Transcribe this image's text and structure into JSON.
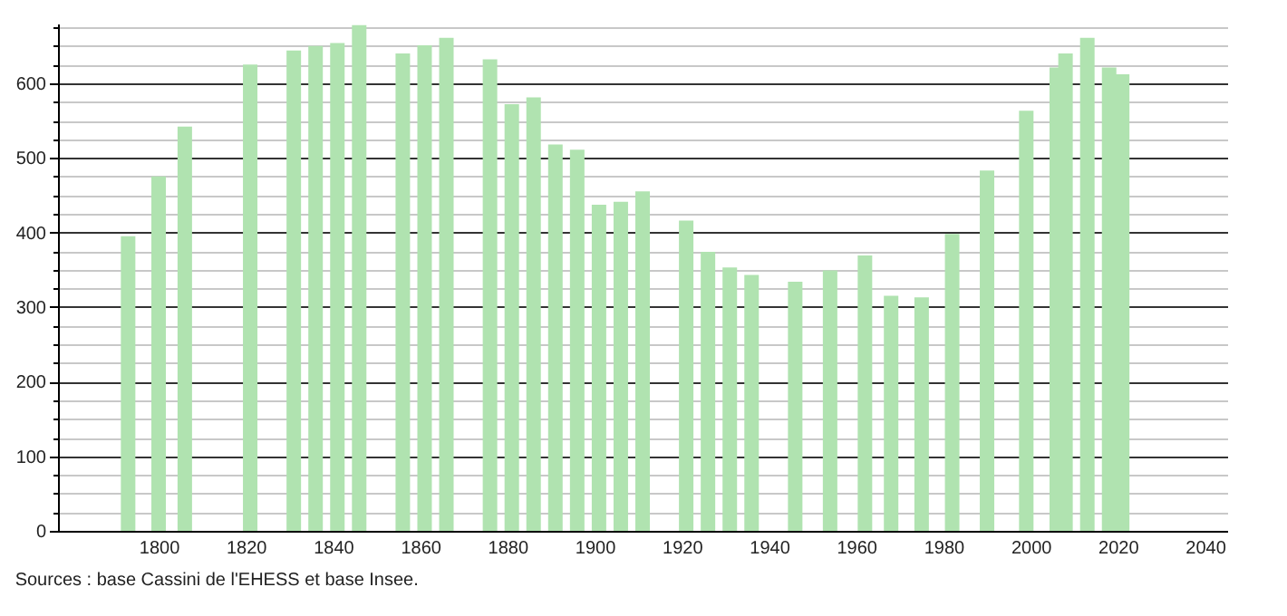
{
  "chart_data": {
    "type": "bar",
    "color": "#b0e3b0",
    "x": [
      1793,
      1800,
      1806,
      1821,
      1831,
      1836,
      1841,
      1846,
      1856,
      1861,
      1866,
      1876,
      1881,
      1886,
      1891,
      1896,
      1901,
      1906,
      1911,
      1921,
      1926,
      1931,
      1936,
      1946,
      1954,
      1962,
      1968,
      1975,
      1982,
      1990,
      1999,
      2006,
      2008,
      2013,
      2018,
      2021
    ],
    "values": [
      395,
      475,
      542,
      625,
      644,
      650,
      654,
      678,
      640,
      651,
      661,
      632,
      572,
      581,
      518,
      511,
      437,
      441,
      455,
      416,
      374,
      353,
      343,
      334,
      349,
      369,
      315,
      313,
      398,
      483,
      563,
      621,
      640,
      661,
      621,
      612
    ],
    "xlim": [
      1779,
      2043
    ],
    "xticks": [
      1800,
      1820,
      1840,
      1860,
      1880,
      1900,
      1920,
      1940,
      1960,
      1980,
      2000,
      2020,
      2040
    ],
    "ylim": [
      0,
      680
    ],
    "yticks": [
      0,
      {
        "value": 25,
        "label": null
      },
      {
        "value": 50,
        "label": null
      },
      {
        "value": 75,
        "label": null
      },
      100,
      {
        "value": 125,
        "label": null
      },
      {
        "value": 150,
        "label": null
      },
      {
        "value": 175,
        "label": null
      },
      200,
      {
        "value": 225,
        "label": null
      },
      {
        "value": 250,
        "label": null
      },
      {
        "value": 275,
        "label": null
      },
      300,
      {
        "value": 325,
        "label": null
      },
      {
        "value": 350,
        "label": null
      },
      {
        "value": 375,
        "label": null
      },
      400,
      {
        "value": 425,
        "label": null
      },
      {
        "value": 450,
        "label": null
      },
      {
        "value": 475,
        "label": null
      },
      500,
      {
        "value": 525,
        "label": null
      },
      {
        "value": 550,
        "label": null
      },
      {
        "value": 575,
        "label": null
      },
      600,
      {
        "value": 625,
        "label": null
      },
      {
        "value": 650,
        "label": null
      },
      {
        "value": 675,
        "label": null
      }
    ],
    "grid": "y",
    "annotations": [
      "Sources : base Cassini de l'EHESS et base Insee."
    ]
  }
}
